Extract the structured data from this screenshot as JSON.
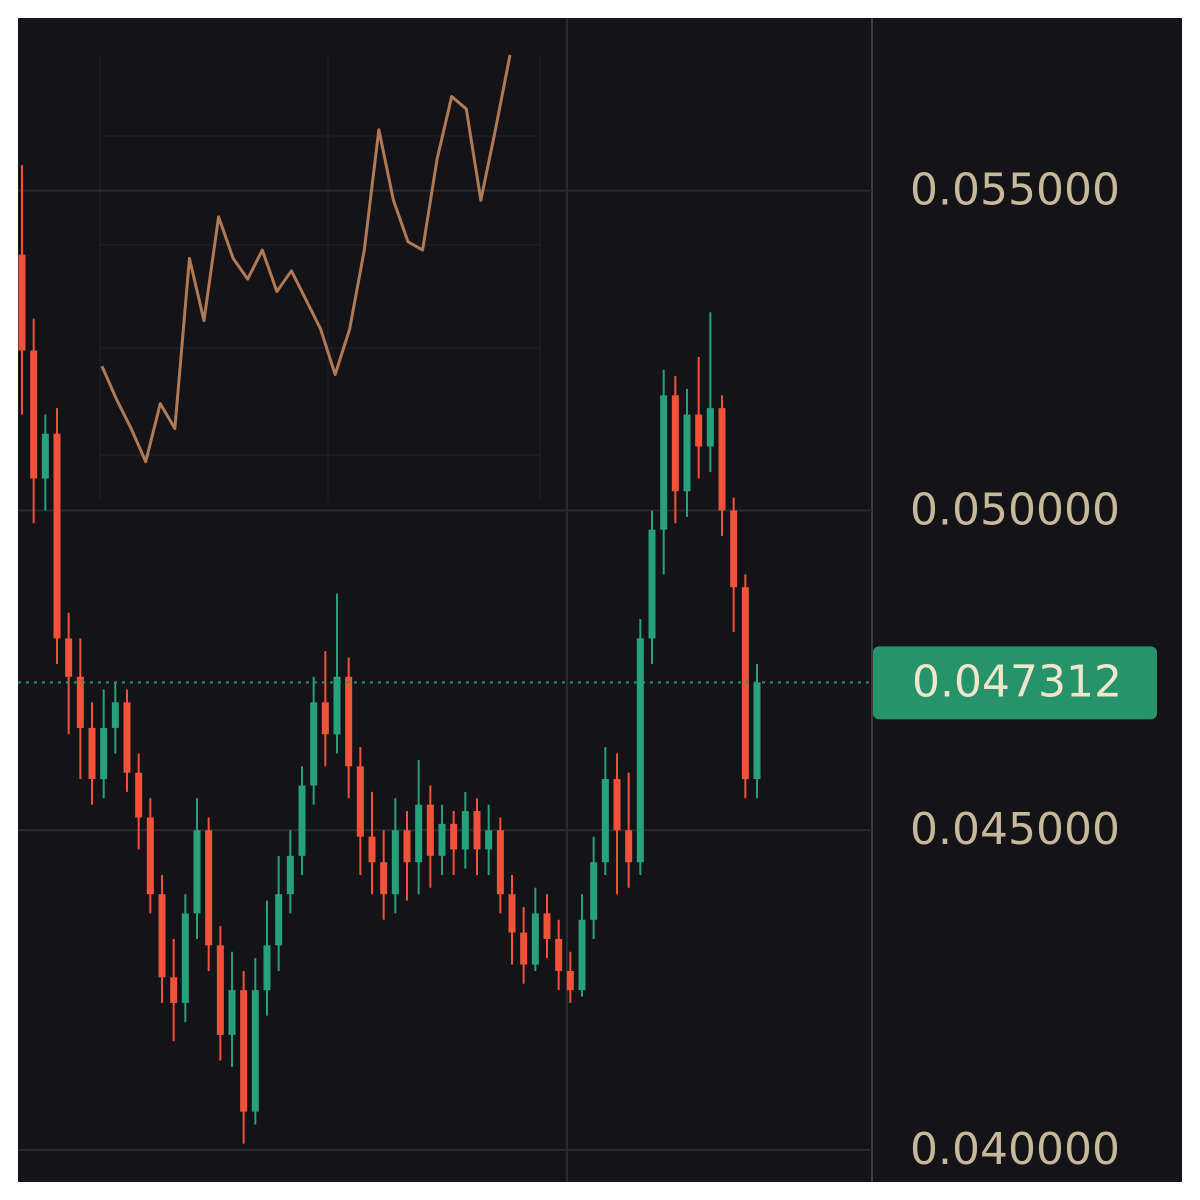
{
  "chart_data": [
    {
      "type": "candlestick",
      "open": [
        0.054,
        0.0525,
        0.0505,
        0.0512,
        0.048,
        0.0474,
        0.0466,
        0.0458,
        0.0466,
        0.047,
        0.0459,
        0.0452,
        0.044,
        0.0427,
        0.0423,
        0.0437,
        0.045,
        0.0432,
        0.0418,
        0.0425,
        0.0406,
        0.0425,
        0.0432,
        0.044,
        0.0446,
        0.0457,
        0.047,
        0.0465,
        0.0474,
        0.046,
        0.0449,
        0.0445,
        0.044,
        0.045,
        0.0445,
        0.0454,
        0.0446,
        0.0451,
        0.0447,
        0.0453,
        0.0447,
        0.045,
        0.044,
        0.0434,
        0.0429,
        0.0437,
        0.0433,
        0.0428,
        0.0425,
        0.0436,
        0.0445,
        0.0458,
        0.045,
        0.0445,
        0.048,
        0.0497,
        0.0518,
        0.0503,
        0.0515,
        0.051,
        0.0516,
        0.05,
        0.0488,
        0.0458
      ],
      "high": [
        0.0554,
        0.053,
        0.0515,
        0.0516,
        0.0484,
        0.048,
        0.047,
        0.0472,
        0.0473,
        0.0472,
        0.0462,
        0.0455,
        0.0443,
        0.0433,
        0.044,
        0.0455,
        0.0452,
        0.0435,
        0.0431,
        0.0428,
        0.043,
        0.0439,
        0.0446,
        0.045,
        0.046,
        0.0474,
        0.0478,
        0.0487,
        0.0477,
        0.0463,
        0.0456,
        0.045,
        0.0455,
        0.0453,
        0.0461,
        0.0457,
        0.0454,
        0.0453,
        0.0456,
        0.0455,
        0.0454,
        0.0452,
        0.0443,
        0.0438,
        0.0441,
        0.044,
        0.0436,
        0.0431,
        0.044,
        0.0449,
        0.0463,
        0.0462,
        0.0459,
        0.0483,
        0.05,
        0.0522,
        0.0521,
        0.0519,
        0.0524,
        0.0531,
        0.0518,
        0.0502,
        0.049,
        0.0476
      ],
      "low": [
        0.0515,
        0.0498,
        0.05,
        0.0476,
        0.0465,
        0.0458,
        0.0454,
        0.0455,
        0.0462,
        0.0456,
        0.0447,
        0.0437,
        0.0423,
        0.0417,
        0.042,
        0.0433,
        0.0428,
        0.0414,
        0.0413,
        0.0401,
        0.0404,
        0.0421,
        0.0428,
        0.0437,
        0.0443,
        0.0454,
        0.046,
        0.0462,
        0.0455,
        0.0443,
        0.044,
        0.0436,
        0.0437,
        0.0439,
        0.044,
        0.0441,
        0.0443,
        0.0443,
        0.0444,
        0.0443,
        0.0443,
        0.0437,
        0.0429,
        0.0426,
        0.0428,
        0.043,
        0.0425,
        0.0423,
        0.0424,
        0.0433,
        0.0443,
        0.044,
        0.0441,
        0.0443,
        0.0476,
        0.049,
        0.0498,
        0.0499,
        0.0505,
        0.0506,
        0.0496,
        0.0481,
        0.0455,
        0.0455
      ],
      "close": [
        0.0525,
        0.0505,
        0.0512,
        0.048,
        0.0474,
        0.0466,
        0.0458,
        0.0466,
        0.047,
        0.0459,
        0.0452,
        0.044,
        0.0427,
        0.0423,
        0.0437,
        0.045,
        0.0432,
        0.0418,
        0.0425,
        0.0406,
        0.0425,
        0.0432,
        0.044,
        0.0446,
        0.0457,
        0.047,
        0.0465,
        0.0474,
        0.046,
        0.0449,
        0.0445,
        0.044,
        0.045,
        0.0445,
        0.0454,
        0.0446,
        0.0451,
        0.0447,
        0.0453,
        0.0447,
        0.045,
        0.044,
        0.0434,
        0.0429,
        0.0437,
        0.0433,
        0.0428,
        0.0425,
        0.0436,
        0.0445,
        0.0458,
        0.045,
        0.0445,
        0.048,
        0.0497,
        0.0518,
        0.0503,
        0.0515,
        0.051,
        0.0516,
        0.05,
        0.0488,
        0.0458,
        0.047312
      ],
      "up_color": "#26a17b",
      "down_color": "#f0523a",
      "ylim": [
        0.0395,
        0.0577
      ],
      "yticks": [
        {
          "value": 0.055,
          "label": "0.055000"
        },
        {
          "value": 0.05,
          "label": "0.050000"
        },
        {
          "value": 0.045,
          "label": "0.045000"
        },
        {
          "value": 0.04,
          "label": "0.040000"
        }
      ],
      "grid": true,
      "current_price": 0.047312,
      "current_price_color": "#27936a"
    },
    {
      "type": "line",
      "values": [
        25,
        17,
        10,
        2,
        16,
        10,
        51,
        36,
        61,
        51,
        46,
        53,
        43,
        48,
        41,
        34,
        23,
        34,
        53,
        82,
        65,
        55,
        53,
        75,
        90,
        87,
        65,
        82,
        100
      ],
      "ylim": [
        0,
        100
      ],
      "color": "#b07a55"
    }
  ]
}
